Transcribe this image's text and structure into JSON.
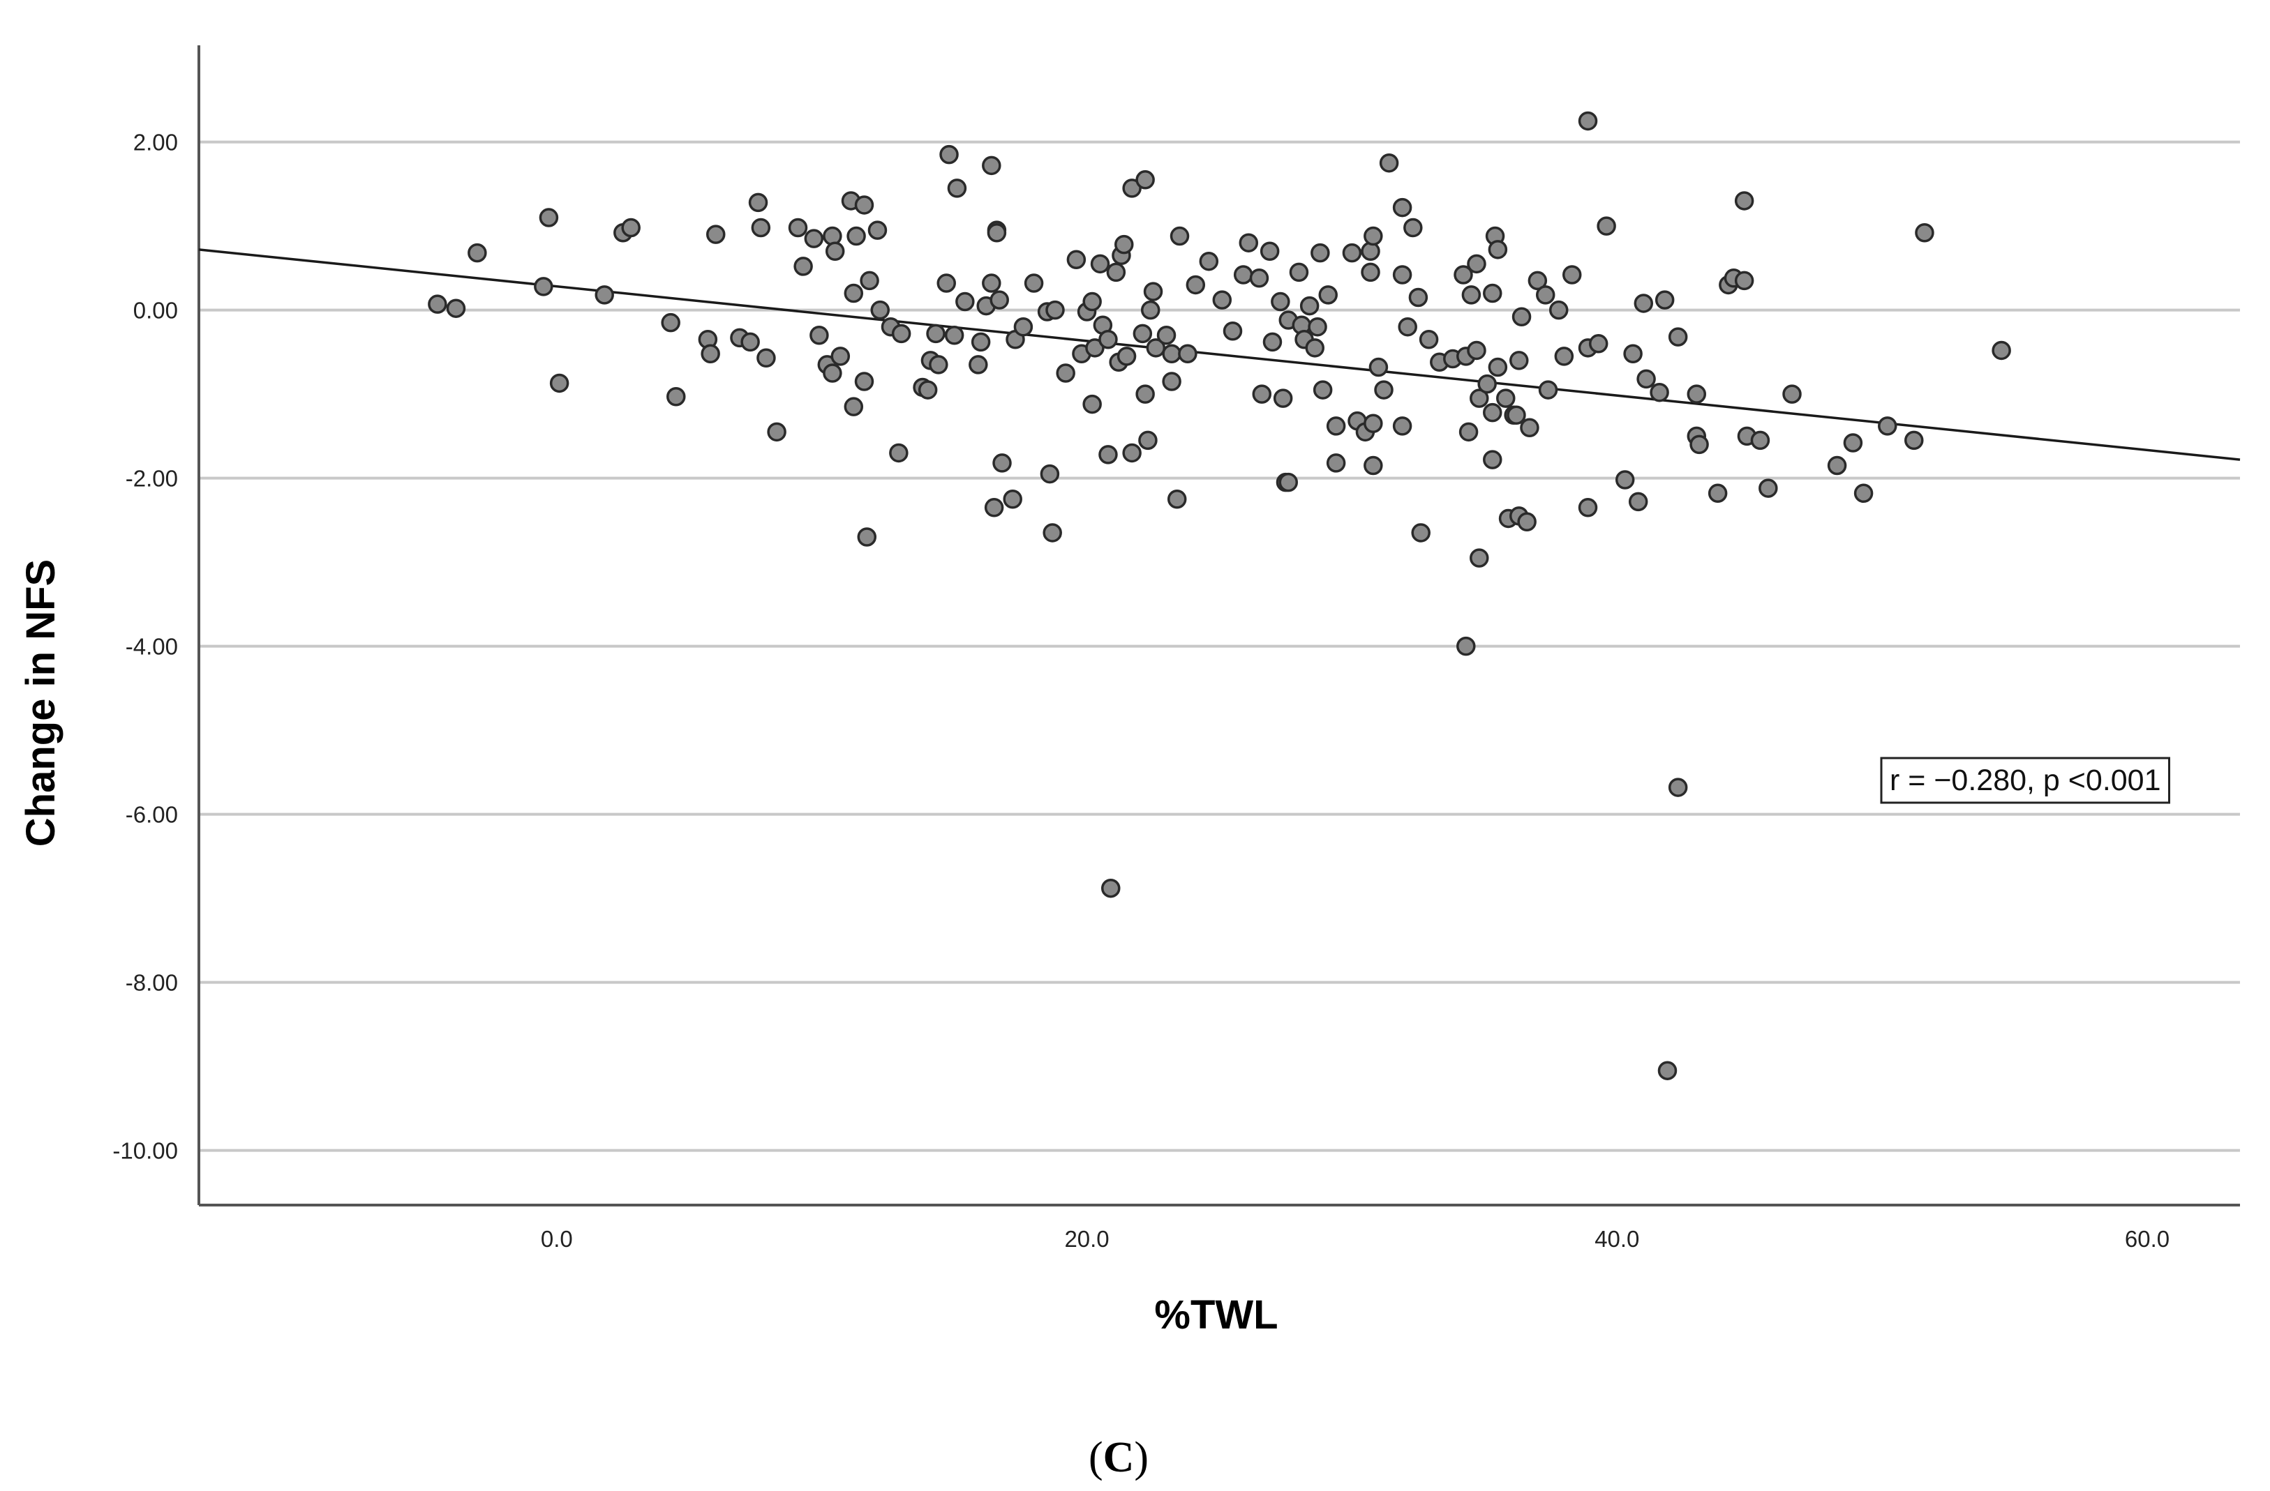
{
  "colors": {
    "point_fill": "#8a8a8a",
    "point_stroke": "#2a2a2a",
    "grid": "#c8c8c8",
    "axis": "#555555",
    "fit_line": "#1a1a1a"
  },
  "caption": {
    "open": "(",
    "letter": "C",
    "close": ")"
  },
  "chart_data": {
    "type": "scatter",
    "xlabel": "%TWL",
    "ylabel": "Change in NFS",
    "xlim": [
      -13.5,
      63.5
    ],
    "ylim": [
      -10.65,
      3.15
    ],
    "x_ticks": [
      0,
      20,
      40,
      60
    ],
    "x_tick_labels": [
      "0.0",
      "20.0",
      "40.0",
      "60.0"
    ],
    "y_ticks": [
      2,
      0,
      -2,
      -4,
      -6,
      -8,
      -10
    ],
    "y_tick_labels": [
      "2.00",
      "0.00",
      "-2.00",
      "-4.00",
      "-6.00",
      "-8.00",
      "-10.00"
    ],
    "grid": "horizontal",
    "annotation": "r = −0.280, p <0.001",
    "fit_line": {
      "x": [
        -13.5,
        63.5
      ],
      "y": [
        0.72,
        -1.78
      ]
    },
    "points": [
      [
        -4.5,
        0.07
      ],
      [
        -3.8,
        0.02
      ],
      [
        -3.0,
        0.68
      ],
      [
        -0.5,
        0.28
      ],
      [
        -0.3,
        1.1
      ],
      [
        0.1,
        -0.87
      ],
      [
        1.8,
        0.18
      ],
      [
        2.5,
        0.92
      ],
      [
        2.8,
        0.98
      ],
      [
        4.3,
        -0.15
      ],
      [
        4.5,
        -1.03
      ],
      [
        5.7,
        -0.35
      ],
      [
        5.8,
        -0.52
      ],
      [
        6.0,
        0.9
      ],
      [
        6.9,
        -0.33
      ],
      [
        7.3,
        -0.38
      ],
      [
        7.6,
        1.28
      ],
      [
        7.7,
        0.98
      ],
      [
        7.9,
        -0.57
      ],
      [
        8.3,
        -1.45
      ],
      [
        9.1,
        0.98
      ],
      [
        9.3,
        0.52
      ],
      [
        9.7,
        0.85
      ],
      [
        9.9,
        -0.3
      ],
      [
        10.2,
        -0.65
      ],
      [
        10.4,
        -0.75
      ],
      [
        10.4,
        0.88
      ],
      [
        10.5,
        0.7
      ],
      [
        10.7,
        -0.55
      ],
      [
        11.1,
        1.3
      ],
      [
        11.2,
        0.2
      ],
      [
        11.2,
        -1.15
      ],
      [
        11.3,
        0.88
      ],
      [
        11.6,
        1.25
      ],
      [
        11.6,
        -0.85
      ],
      [
        11.7,
        -2.7
      ],
      [
        11.8,
        0.35
      ],
      [
        12.1,
        0.95
      ],
      [
        12.2,
        0.0
      ],
      [
        12.6,
        -0.2
      ],
      [
        12.9,
        -1.7
      ],
      [
        13.0,
        -0.28
      ],
      [
        13.8,
        -0.92
      ],
      [
        14.0,
        -0.95
      ],
      [
        14.1,
        -0.6
      ],
      [
        14.3,
        -0.28
      ],
      [
        14.4,
        -0.65
      ],
      [
        14.7,
        0.32
      ],
      [
        14.8,
        1.85
      ],
      [
        15.0,
        -0.3
      ],
      [
        15.1,
        1.45
      ],
      [
        15.4,
        0.1
      ],
      [
        15.9,
        -0.65
      ],
      [
        16.0,
        -0.38
      ],
      [
        16.2,
        0.05
      ],
      [
        16.4,
        0.32
      ],
      [
        16.4,
        1.72
      ],
      [
        16.5,
        -2.35
      ],
      [
        16.6,
        0.95
      ],
      [
        16.6,
        0.92
      ],
      [
        16.7,
        0.12
      ],
      [
        16.8,
        -1.82
      ],
      [
        17.2,
        -2.25
      ],
      [
        17.3,
        -0.35
      ],
      [
        17.6,
        -0.2
      ],
      [
        18.0,
        0.32
      ],
      [
        18.5,
        -0.02
      ],
      [
        18.6,
        -1.95
      ],
      [
        18.8,
        0.0
      ],
      [
        18.7,
        -2.65
      ],
      [
        19.2,
        -0.75
      ],
      [
        19.6,
        0.6
      ],
      [
        19.8,
        -0.52
      ],
      [
        20.0,
        -0.02
      ],
      [
        20.2,
        0.1
      ],
      [
        20.2,
        -1.12
      ],
      [
        20.3,
        -0.45
      ],
      [
        20.5,
        0.55
      ],
      [
        20.6,
        -0.18
      ],
      [
        20.8,
        -0.35
      ],
      [
        20.8,
        -1.72
      ],
      [
        20.9,
        -6.88
      ],
      [
        21.1,
        0.45
      ],
      [
        21.2,
        -0.62
      ],
      [
        21.3,
        0.65
      ],
      [
        21.4,
        0.78
      ],
      [
        21.5,
        -0.55
      ],
      [
        21.7,
        1.45
      ],
      [
        21.7,
        -1.7
      ],
      [
        22.1,
        -0.28
      ],
      [
        22.2,
        1.55
      ],
      [
        22.2,
        -1.0
      ],
      [
        22.3,
        -1.55
      ],
      [
        22.4,
        0.0
      ],
      [
        22.5,
        0.22
      ],
      [
        22.6,
        -0.45
      ],
      [
        23.0,
        -0.3
      ],
      [
        23.2,
        -0.85
      ],
      [
        23.2,
        -0.52
      ],
      [
        23.4,
        -2.25
      ],
      [
        23.5,
        0.88
      ],
      [
        23.8,
        -0.52
      ],
      [
        24.1,
        0.3
      ],
      [
        24.6,
        0.58
      ],
      [
        25.1,
        0.12
      ],
      [
        25.5,
        -0.25
      ],
      [
        25.9,
        0.42
      ],
      [
        26.1,
        0.8
      ],
      [
        26.5,
        0.38
      ],
      [
        26.6,
        -1.0
      ],
      [
        26.9,
        0.7
      ],
      [
        27.0,
        -0.38
      ],
      [
        27.3,
        0.1
      ],
      [
        27.4,
        -1.05
      ],
      [
        27.5,
        -2.05
      ],
      [
        27.6,
        -2.05
      ],
      [
        27.6,
        -0.12
      ],
      [
        28.0,
        0.45
      ],
      [
        28.1,
        -0.18
      ],
      [
        28.2,
        -0.35
      ],
      [
        28.4,
        0.05
      ],
      [
        28.6,
        -0.45
      ],
      [
        28.7,
        -0.2
      ],
      [
        28.8,
        0.68
      ],
      [
        28.9,
        -0.95
      ],
      [
        29.1,
        0.18
      ],
      [
        29.4,
        -1.38
      ],
      [
        29.4,
        -1.82
      ],
      [
        30.0,
        0.68
      ],
      [
        30.2,
        -1.32
      ],
      [
        30.5,
        -1.45
      ],
      [
        30.7,
        0.45
      ],
      [
        30.7,
        0.7
      ],
      [
        30.8,
        0.88
      ],
      [
        30.8,
        -1.35
      ],
      [
        30.8,
        -1.85
      ],
      [
        31.0,
        -0.68
      ],
      [
        31.2,
        -0.95
      ],
      [
        31.4,
        1.75
      ],
      [
        31.9,
        1.22
      ],
      [
        31.9,
        0.42
      ],
      [
        31.9,
        -1.38
      ],
      [
        32.1,
        -0.2
      ],
      [
        32.3,
        0.98
      ],
      [
        32.5,
        0.15
      ],
      [
        32.6,
        -2.65
      ],
      [
        32.9,
        -0.35
      ],
      [
        33.3,
        -0.62
      ],
      [
        33.8,
        -0.58
      ],
      [
        34.2,
        0.42
      ],
      [
        34.3,
        -0.55
      ],
      [
        34.3,
        -4.0
      ],
      [
        34.4,
        -1.45
      ],
      [
        34.5,
        0.18
      ],
      [
        34.7,
        0.55
      ],
      [
        34.7,
        -0.48
      ],
      [
        34.8,
        -1.05
      ],
      [
        34.8,
        -2.95
      ],
      [
        35.1,
        -0.88
      ],
      [
        35.3,
        0.2
      ],
      [
        35.3,
        -1.22
      ],
      [
        35.3,
        -1.78
      ],
      [
        35.4,
        0.88
      ],
      [
        35.5,
        0.72
      ],
      [
        35.5,
        -0.68
      ],
      [
        35.8,
        -1.05
      ],
      [
        35.9,
        -2.48
      ],
      [
        36.1,
        -1.25
      ],
      [
        36.2,
        -1.25
      ],
      [
        36.3,
        -0.6
      ],
      [
        36.3,
        -2.45
      ],
      [
        36.4,
        -0.08
      ],
      [
        36.6,
        -2.52
      ],
      [
        36.7,
        -1.4
      ],
      [
        37.0,
        0.35
      ],
      [
        37.3,
        0.18
      ],
      [
        37.4,
        -0.95
      ],
      [
        37.8,
        0.0
      ],
      [
        38.0,
        -0.55
      ],
      [
        38.3,
        0.42
      ],
      [
        38.9,
        2.25
      ],
      [
        38.9,
        -0.45
      ],
      [
        38.9,
        -2.35
      ],
      [
        39.3,
        -0.4
      ],
      [
        39.6,
        1.0
      ],
      [
        40.3,
        -2.02
      ],
      [
        40.6,
        -0.52
      ],
      [
        40.8,
        -2.28
      ],
      [
        41.0,
        0.08
      ],
      [
        41.1,
        -0.82
      ],
      [
        41.6,
        -0.98
      ],
      [
        41.9,
        -9.05
      ],
      [
        41.8,
        0.12
      ],
      [
        42.3,
        -5.68
      ],
      [
        42.3,
        -0.32
      ],
      [
        43.0,
        -1.0
      ],
      [
        43.0,
        -1.5
      ],
      [
        43.1,
        -1.6
      ],
      [
        43.8,
        -2.18
      ],
      [
        44.2,
        0.3
      ],
      [
        44.4,
        0.38
      ],
      [
        44.8,
        1.3
      ],
      [
        44.8,
        0.35
      ],
      [
        44.9,
        -1.5
      ],
      [
        45.4,
        -1.55
      ],
      [
        45.7,
        -2.12
      ],
      [
        46.6,
        -1.0
      ],
      [
        48.3,
        -1.85
      ],
      [
        48.9,
        -1.58
      ],
      [
        49.3,
        -2.18
      ],
      [
        50.2,
        -1.38
      ],
      [
        51.2,
        -1.55
      ],
      [
        51.6,
        0.92
      ],
      [
        54.5,
        -0.48
      ]
    ]
  }
}
